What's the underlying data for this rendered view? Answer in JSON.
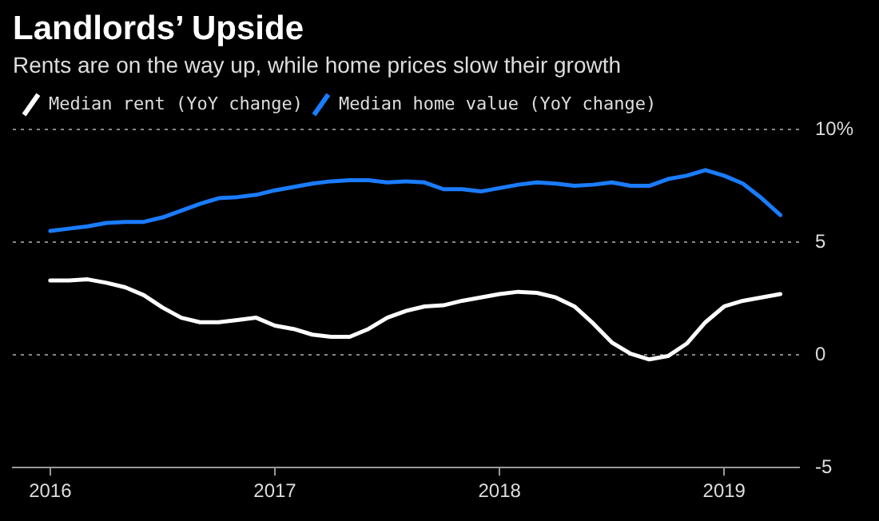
{
  "chart_data": {
    "type": "line",
    "title": "Landlords’ Upside",
    "subtitle": "Rents are on the way up, while home prices slow their growth",
    "x": [
      "2016-01",
      "2016-02",
      "2016-03",
      "2016-04",
      "2016-05",
      "2016-06",
      "2016-07",
      "2016-08",
      "2016-09",
      "2016-10",
      "2016-11",
      "2016-12",
      "2017-01",
      "2017-02",
      "2017-03",
      "2017-04",
      "2017-05",
      "2017-06",
      "2017-07",
      "2017-08",
      "2017-09",
      "2017-10",
      "2017-11",
      "2017-12",
      "2018-01",
      "2018-02",
      "2018-03",
      "2018-04",
      "2018-05",
      "2018-06",
      "2018-07",
      "2018-08",
      "2018-09",
      "2018-10",
      "2018-11",
      "2018-12",
      "2019-01",
      "2019-02",
      "2019-03",
      "2019-04"
    ],
    "series": [
      {
        "name": "Median rent (YoY change)",
        "color": "#ffffff",
        "values": [
          3.3,
          3.3,
          3.35,
          3.2,
          3.0,
          2.65,
          2.1,
          1.65,
          1.45,
          1.45,
          1.55,
          1.65,
          1.3,
          1.15,
          0.9,
          0.8,
          0.8,
          1.15,
          1.65,
          1.95,
          2.15,
          2.2,
          2.4,
          2.55,
          2.7,
          2.8,
          2.75,
          2.55,
          2.15,
          1.4,
          0.55,
          0.05,
          -0.2,
          -0.05,
          0.5,
          1.45,
          2.15,
          2.4,
          2.55,
          2.7
        ]
      },
      {
        "name": "Median home value (YoY change)",
        "color": "#1a7cff",
        "values": [
          5.5,
          5.6,
          5.7,
          5.85,
          5.9,
          5.9,
          6.1,
          6.4,
          6.7,
          6.95,
          7.0,
          7.1,
          7.3,
          7.45,
          7.6,
          7.7,
          7.75,
          7.75,
          7.65,
          7.7,
          7.65,
          7.35,
          7.35,
          7.25,
          7.4,
          7.55,
          7.65,
          7.6,
          7.5,
          7.55,
          7.65,
          7.5,
          7.5,
          7.8,
          7.95,
          8.2,
          7.95,
          7.6,
          6.95,
          6.2
        ]
      }
    ],
    "xlim": [
      "2015-11",
      "2019-05"
    ],
    "xticks": [
      "2016",
      "2017",
      "2018",
      "2019"
    ],
    "ylim": [
      -5,
      10
    ],
    "yticks": [
      {
        "value": 10,
        "label": "10%"
      },
      5,
      0,
      -5
    ],
    "grid": "y",
    "legend": "top left",
    "line_style": "solid",
    "marker": "none"
  }
}
